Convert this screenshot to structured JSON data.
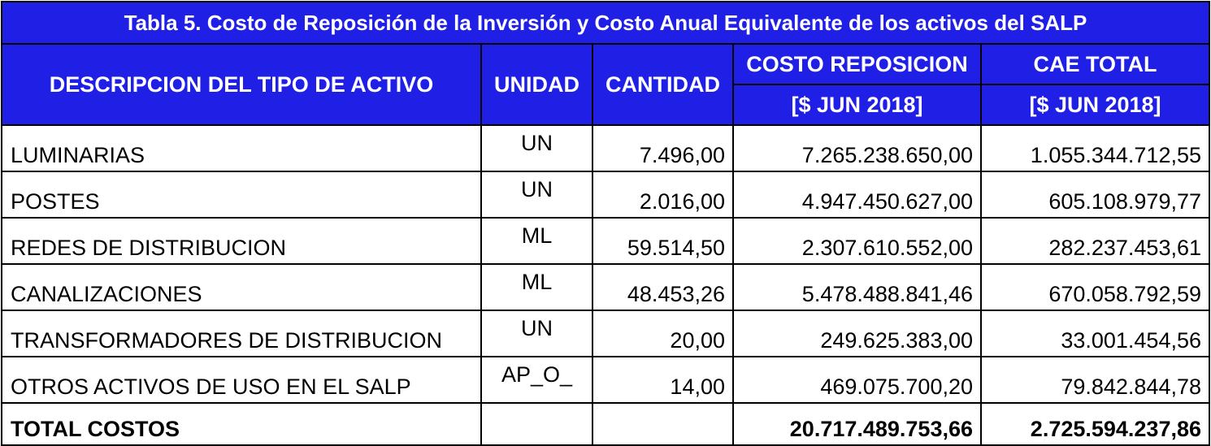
{
  "title": "Tabla 5. Costo de Reposición de la Inversión y Costo Anual Equivalente de los activos del SALP",
  "headers": {
    "descripcion": "DESCRIPCION DEL TIPO DE ACTIVO",
    "unidad": "UNIDAD",
    "cantidad": "CANTIDAD",
    "costo_reposicion": "COSTO REPOSICION",
    "costo_reposicion_unit": "[$ JUN 2018]",
    "cae_total": "CAE TOTAL",
    "cae_total_unit": "[$ JUN 2018]"
  },
  "rows": [
    {
      "descripcion": "LUMINARIAS",
      "unidad": "UN",
      "cantidad": "7.496,00",
      "costo_reposicion": "7.265.238.650,00",
      "cae_total": "1.055.344.712,55"
    },
    {
      "descripcion": "POSTES",
      "unidad": "UN",
      "cantidad": "2.016,00",
      "costo_reposicion": "4.947.450.627,00",
      "cae_total": "605.108.979,77"
    },
    {
      "descripcion": "REDES DE DISTRIBUCION",
      "unidad": "ML",
      "cantidad": "59.514,50",
      "costo_reposicion": "2.307.610.552,00",
      "cae_total": "282.237.453,61"
    },
    {
      "descripcion": "CANALIZACIONES",
      "unidad": "ML",
      "cantidad": "48.453,26",
      "costo_reposicion": "5.478.488.841,46",
      "cae_total": "670.058.792,59"
    },
    {
      "descripcion": "TRANSFORMADORES DE DISTRIBUCION",
      "unidad": "UN",
      "cantidad": "20,00",
      "costo_reposicion": "249.625.383,00",
      "cae_total": "33.001.454,56"
    },
    {
      "descripcion": "OTROS ACTIVOS DE USO EN EL SALP",
      "unidad": "AP_O_",
      "cantidad": "14,00",
      "costo_reposicion": "469.075.700,20",
      "cae_total": "79.842.844,78"
    }
  ],
  "total": {
    "label": "TOTAL COSTOS",
    "unidad": "",
    "cantidad": "",
    "costo_reposicion": "20.717.489.753,66",
    "cae_total": "2.725.594.237,86"
  },
  "colors": {
    "header_bg": "#1f1fe6",
    "header_text": "#ffffff",
    "border": "#000000"
  }
}
